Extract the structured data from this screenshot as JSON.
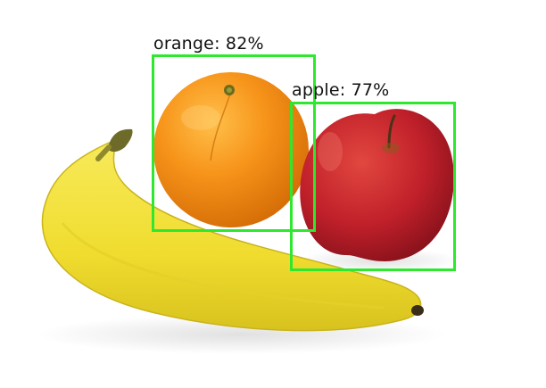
{
  "colors": {
    "background": "#ffffff",
    "box_stroke": "#2ee82e",
    "label_text": "#111111",
    "banana": "#f2e23a",
    "orange": "#f08a10",
    "apple": "#c0202a"
  },
  "objects": {
    "banana": {
      "name": "banana"
    },
    "orange": {
      "name": "orange"
    },
    "apple": {
      "name": "apple"
    }
  },
  "detections": [
    {
      "label": "orange: 82%",
      "class": "orange",
      "score": 0.82
    },
    {
      "label": "apple: 77%",
      "class": "apple",
      "score": 0.77
    }
  ]
}
